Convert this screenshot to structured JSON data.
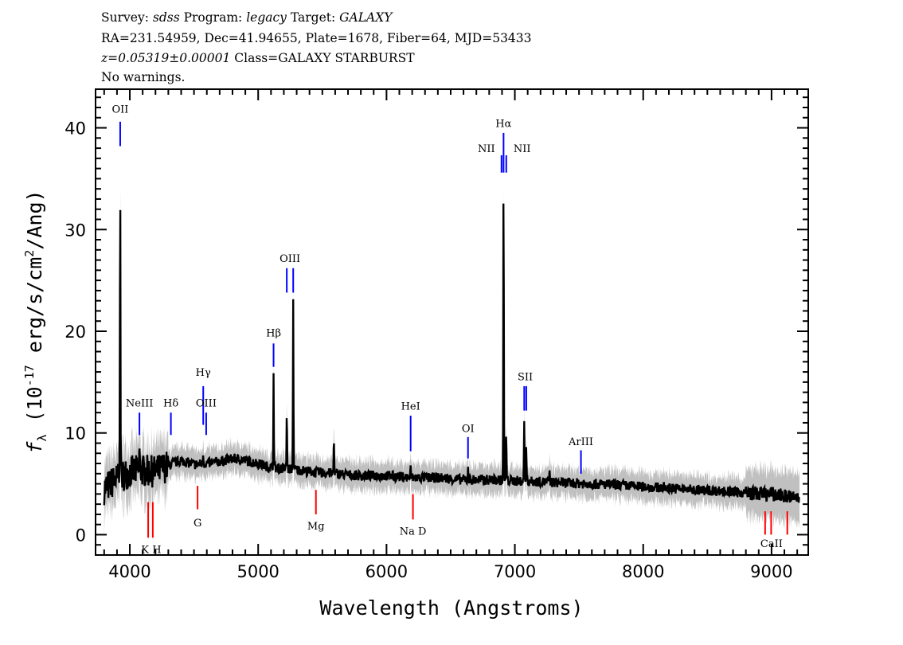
{
  "header": {
    "survey_label": "Survey:",
    "survey": "sdss",
    "program_label": "Program:",
    "program": "legacy",
    "target_label": "Target:",
    "target": "GALAXY",
    "line2": "RA=231.54959, Dec=41.94655, Plate=1678, Fiber=64, MJD=53433",
    "redshift": "z=0.05319±0.00001",
    "class": "Class=GALAXY STARBURST",
    "warnings": "No warnings."
  },
  "chart_data": {
    "type": "line",
    "xlabel": "Wavelength (Angstroms)",
    "ylabel": "f_λ (10^-17 erg/s/cm^2/Ang)",
    "ylabel_parts": {
      "f": "f",
      "sub": "λ",
      "pre": " (10",
      "exp": "-17",
      "mid": " erg/s/cm",
      "exp2": "2",
      "post": "/Ang)"
    },
    "xlim": [
      3733,
      9286
    ],
    "ylim": [
      -2,
      43.8
    ],
    "xticks": [
      4000,
      5000,
      6000,
      7000,
      8000,
      9000
    ],
    "yticks": [
      0,
      10,
      20,
      30,
      40
    ],
    "grid": false,
    "colors": {
      "flux": "#000000",
      "error": "#c0c0c0",
      "emission": "#0000ff",
      "absorption": "#ff0000"
    },
    "continuum": {
      "x": [
        3800,
        3900,
        4000,
        4100,
        4200,
        4300,
        4400,
        4500,
        4600,
        4700,
        4800,
        4900,
        5000,
        5100,
        5200,
        5300,
        5400,
        5500,
        5600,
        5800,
        6000,
        6200,
        6400,
        6600,
        6800,
        7000,
        7200,
        7400,
        7600,
        7800,
        8000,
        8200,
        8400,
        8600,
        8800,
        9000,
        9100,
        9200
      ],
      "y": [
        4.5,
        5.5,
        6.2,
        6.3,
        6.2,
        6.8,
        7.3,
        6.9,
        7.0,
        7.2,
        7.5,
        7.3,
        7.0,
        6.6,
        6.5,
        6.4,
        6.2,
        6.1,
        6.0,
        5.8,
        5.8,
        5.6,
        5.6,
        5.4,
        5.4,
        5.3,
        5.2,
        5.1,
        5.0,
        4.9,
        4.7,
        4.6,
        4.4,
        4.3,
        4.1,
        4.0,
        3.8,
        3.6
      ]
    },
    "emission_peaks": [
      {
        "x": 3925,
        "y": 36.5
      },
      {
        "x": 4075,
        "y": 8.5
      },
      {
        "x": 4572,
        "y": 8.0
      },
      {
        "x": 5120,
        "y": 15.7
      },
      {
        "x": 5223,
        "y": 12.0
      },
      {
        "x": 5273,
        "y": 23.0
      },
      {
        "x": 5590,
        "y": 9.8
      },
      {
        "x": 6188,
        "y": 6.5
      },
      {
        "x": 6635,
        "y": 6.8
      },
      {
        "x": 6912,
        "y": 35.3
      },
      {
        "x": 6933,
        "y": 10.0
      },
      {
        "x": 7073,
        "y": 11.5
      },
      {
        "x": 7089,
        "y": 8.8
      },
      {
        "x": 7270,
        "y": 6.5
      }
    ],
    "line_markers": [
      {
        "label": "OII",
        "x": 3925,
        "kind": "emission"
      },
      {
        "label": "NeIII",
        "x": 4075,
        "kind": "emission"
      },
      {
        "label": "Hδ",
        "x": 4320,
        "kind": "emission"
      },
      {
        "label": "Hγ",
        "x": 4572,
        "kind": "emission"
      },
      {
        "label": "OIII",
        "x": 4595,
        "kind": "emission"
      },
      {
        "label": "Hβ",
        "x": 5120,
        "kind": "emission"
      },
      {
        "label": "OIII",
        "x": 5248,
        "kind": "emission"
      },
      {
        "label": "HeI",
        "x": 6188,
        "kind": "emission"
      },
      {
        "label": "OI",
        "x": 6635,
        "kind": "emission"
      },
      {
        "label": "NII",
        "x": 6896,
        "kind": "emission"
      },
      {
        "label": "Hα",
        "x": 6912,
        "kind": "emission"
      },
      {
        "label": "NII",
        "x": 6933,
        "kind": "emission"
      },
      {
        "label": "SII",
        "x": 7081,
        "kind": "emission"
      },
      {
        "label": "ArIII",
        "x": 7515,
        "kind": "emission"
      },
      {
        "label": "K",
        "x": 4143,
        "kind": "absorption"
      },
      {
        "label": "H",
        "x": 4179,
        "kind": "absorption"
      },
      {
        "label": "G",
        "x": 4528,
        "kind": "absorption"
      },
      {
        "label": "Mg",
        "x": 5450,
        "kind": "absorption"
      },
      {
        "label": "Na D",
        "x": 6206,
        "kind": "absorption"
      },
      {
        "label": "CaII",
        "x": 9000,
        "kind": "absorption"
      }
    ]
  }
}
